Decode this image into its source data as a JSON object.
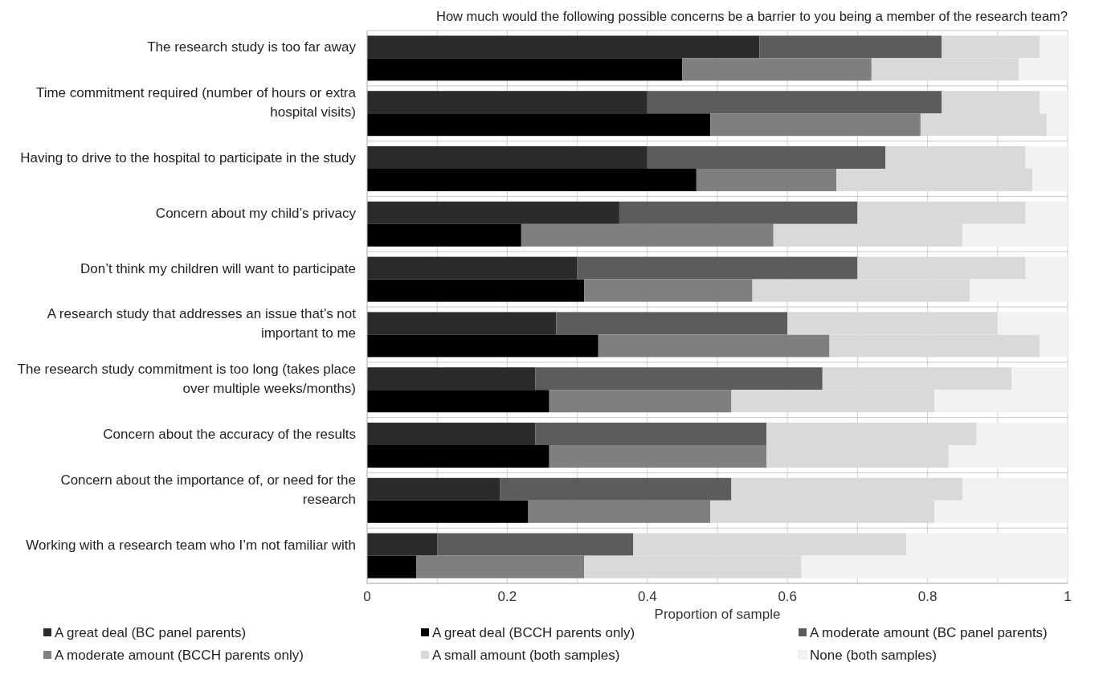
{
  "chart_data": {
    "type": "bar",
    "orientation": "horizontal",
    "stacked": true,
    "title": "How much would the following possible concerns be a barrier to you being a member of the research team?",
    "xlabel": "Proportion of sample",
    "categories": [
      "The research study is too far away",
      null,
      "Time commitment required (number of hours or extra hospital visits)",
      null,
      "Having to drive to the hospital to participate in the study",
      null,
      "Concern about my child’s privacy",
      null,
      "Don’t think my children will want to participate",
      null,
      "A research study that addresses an issue that’s not important to me",
      null,
      "The research study commitment is too long (takes place over multiple weeks/months)",
      null,
      "Concern about the accuracy of the results",
      null,
      "Concern about the importance of, or need for the research",
      null,
      "Working with a research team who I’m not familiar with",
      null
    ],
    "series": [
      {
        "name": "A great deal (BC panel parents)",
        "color": "#2b2b2b",
        "values": [
          0.56,
          null,
          0.4,
          null,
          0.4,
          null,
          0.36,
          null,
          0.3,
          null,
          0.27,
          null,
          0.24,
          null,
          0.24,
          null,
          0.19,
          null,
          0.1,
          null
        ]
      },
      {
        "name": "A great deal (BCCH parents only)",
        "color": "#000000",
        "values": [
          null,
          0.45,
          null,
          0.49,
          null,
          0.47,
          null,
          0.22,
          null,
          0.31,
          null,
          0.33,
          null,
          0.26,
          null,
          0.26,
          null,
          0.23,
          null,
          0.07
        ]
      },
      {
        "name": "A moderate amount (BC panel parents)",
        "color": "#5c5c5c",
        "values": [
          0.26,
          null,
          0.42,
          null,
          0.34,
          null,
          0.34,
          null,
          0.4,
          null,
          0.33,
          null,
          0.41,
          null,
          0.33,
          null,
          0.33,
          null,
          0.28,
          null
        ]
      },
      {
        "name": "A moderate amount (BCCH parents only)",
        "color": "#7f7f7f",
        "values": [
          null,
          0.27,
          null,
          0.3,
          null,
          0.2,
          null,
          0.36,
          null,
          0.24,
          null,
          0.33,
          null,
          0.26,
          null,
          0.31,
          null,
          0.26,
          null,
          0.24
        ]
      },
      {
        "name": "A small amount (both samples)",
        "color": "#d9d9d9",
        "values": [
          0.14,
          0.21,
          0.14,
          0.18,
          0.2,
          0.28,
          0.24,
          0.27,
          0.24,
          0.31,
          0.3,
          0.3,
          0.27,
          0.29,
          0.3,
          0.26,
          0.33,
          0.32,
          0.39,
          0.31
        ]
      },
      {
        "name": "None (both samples)",
        "color": "#f2f2f2",
        "values": [
          0.04,
          0.07,
          0.04,
          0.03,
          0.06,
          0.05,
          0.06,
          0.15,
          0.06,
          0.14,
          0.1,
          0.04,
          0.08,
          0.19,
          0.13,
          0.17,
          0.15,
          0.19,
          0.23,
          0.38
        ]
      }
    ],
    "xlim": [
      0,
      1
    ],
    "xticks": [
      0,
      {
        "value": 0.1,
        "label": null
      },
      0.2,
      {
        "value": 0.3,
        "label": null
      },
      0.4,
      {
        "value": 0.5,
        "label": null
      },
      0.6,
      {
        "value": 0.7,
        "label": null
      },
      0.8,
      {
        "value": 0.9,
        "label": null
      },
      1
    ],
    "grid": true,
    "legend": "bottom"
  }
}
